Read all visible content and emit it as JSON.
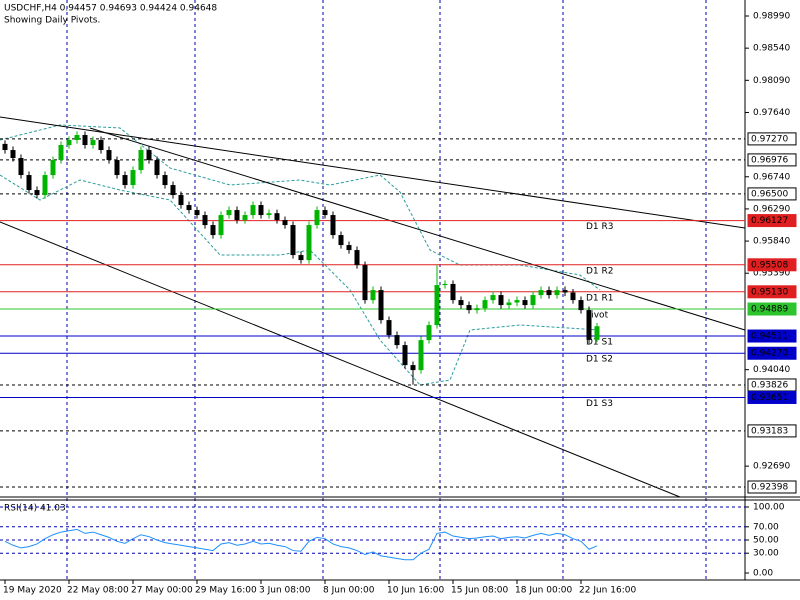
{
  "chart_data": [
    {
      "type": "candlestick",
      "title": "USDCHF,H4  0.94457 0.94693 0.94424 0.94648",
      "subtitle": "Showing Daily Pivots.",
      "bull_color": "#00b400",
      "bear_color": "#000000",
      "grid": true,
      "ylim": [
        0.92258,
        0.99214
      ],
      "yticks": [
        {
          "value": 0.9899,
          "label": "0.98990"
        },
        {
          "value": 0.9854,
          "label": "0.98540"
        },
        {
          "value": 0.9809,
          "label": "0.98090"
        },
        {
          "value": 0.9764,
          "label": "0.97640"
        },
        {
          "value": 0.9674,
          "label": "0.96740"
        },
        {
          "value": 0.9629,
          "label": "0.96290"
        },
        {
          "value": 0.9584,
          "label": "0.95840"
        },
        {
          "value": 0.9539,
          "label": "0.95390"
        },
        {
          "value": 0.9404,
          "label": "0.94040"
        },
        {
          "value": 0.9269,
          "label": "0.92690"
        }
      ],
      "levels": [
        {
          "value": 0.9727,
          "label": "0.97270",
          "color": "#000000",
          "dashed": true
        },
        {
          "value": 0.96976,
          "label": "0.96976",
          "color": "#000000",
          "dashed": true
        },
        {
          "value": 0.965,
          "label": "0.96500",
          "color": "#000000",
          "dashed": true
        },
        {
          "value": 0.96127,
          "label": "0.96127",
          "name": "D1 R3",
          "color": "#e02020",
          "dashed": false
        },
        {
          "value": 0.95508,
          "label": "0.95508",
          "name": "D1 R2",
          "color": "#e02020",
          "dashed": false
        },
        {
          "value": 0.9513,
          "label": "0.95130",
          "name": "D1 R1",
          "color": "#e02020",
          "dashed": false
        },
        {
          "value": 0.94889,
          "label": "0.94889",
          "name": "Pivot",
          "color": "#2ec42e",
          "dashed": false
        },
        {
          "value": 0.94511,
          "label": "0.94511",
          "name": "D1 S1",
          "color": "#0000c8",
          "dashed": false
        },
        {
          "value": 0.9427,
          "label": "0.94270",
          "name": "D1 S2",
          "color": "#0000c8",
          "dashed": false
        },
        {
          "value": 0.93826,
          "label": "0.93826",
          "color": "#000000",
          "dashed": true
        },
        {
          "value": 0.93651,
          "label": "0.93651",
          "name": "D1 S3",
          "color": "#0000c8",
          "dashed": false
        },
        {
          "value": 0.93183,
          "label": "0.93183",
          "color": "#000000",
          "dashed": true
        },
        {
          "value": 0.92398,
          "label": "0.92398",
          "color": "#000000",
          "dashed": true
        }
      ],
      "categories": [
        "19 May 2020",
        null,
        null,
        null,
        null,
        null,
        null,
        null,
        "22 May 08:00",
        null,
        null,
        null,
        null,
        null,
        null,
        null,
        "27 May 00:00",
        null,
        null,
        null,
        null,
        null,
        null,
        null,
        "29 May 16:00",
        null,
        null,
        null,
        null,
        null,
        null,
        null,
        "3 Jun 08:00",
        null,
        null,
        null,
        null,
        null,
        null,
        null,
        "8 Jun 00:00",
        null,
        null,
        null,
        null,
        null,
        null,
        null,
        "10 Jun 16:00",
        null,
        null,
        null,
        null,
        null,
        null,
        null,
        "15 Jun 08:00",
        null,
        null,
        null,
        null,
        null,
        null,
        null,
        "18 Jun 00:00",
        null,
        null,
        null,
        null,
        null,
        null,
        null,
        "22 Jun 16:00",
        null,
        null
      ],
      "candles": [
        [
          0.972,
          0.9725,
          0.97064,
          0.97114
        ],
        [
          0.97114,
          0.97164,
          0.96952,
          0.97002
        ],
        [
          0.97002,
          0.97052,
          0.96714,
          0.96764
        ],
        [
          0.96764,
          0.96814,
          0.96504,
          0.96554
        ],
        [
          0.96554,
          0.96604,
          0.96434,
          0.96484
        ],
        [
          0.96484,
          0.96814,
          0.96434,
          0.96764
        ],
        [
          0.96764,
          0.97024,
          0.96714,
          0.96974
        ],
        [
          0.96974,
          0.97234,
          0.96924,
          0.97184
        ],
        [
          0.97184,
          0.97304,
          0.97134,
          0.97254
        ],
        [
          0.97254,
          0.97374,
          0.97204,
          0.97324
        ],
        [
          0.97324,
          0.97374,
          0.97134,
          0.97184
        ],
        [
          0.97184,
          0.97304,
          0.97134,
          0.97254
        ],
        [
          0.97254,
          0.97304,
          0.97064,
          0.97114
        ],
        [
          0.97114,
          0.97164,
          0.96924,
          0.96974
        ],
        [
          0.96974,
          0.97024,
          0.96714,
          0.96764
        ],
        [
          0.96764,
          0.96814,
          0.96574,
          0.96624
        ],
        [
          0.96624,
          0.96884,
          0.96574,
          0.96834
        ],
        [
          0.96834,
          0.97164,
          0.96784,
          0.97114
        ],
        [
          0.97114,
          0.97164,
          0.96924,
          0.96974
        ],
        [
          0.96974,
          0.97024,
          0.96714,
          0.96764
        ],
        [
          0.96764,
          0.96814,
          0.96574,
          0.96624
        ],
        [
          0.96624,
          0.96674,
          0.96434,
          0.96484
        ],
        [
          0.96484,
          0.96534,
          0.96294,
          0.96344
        ],
        [
          0.96344,
          0.96394,
          0.96224,
          0.96274
        ],
        [
          0.96274,
          0.96324,
          0.96154,
          0.96204
        ],
        [
          0.96204,
          0.96254,
          0.96014,
          0.96064
        ],
        [
          0.96064,
          0.96114,
          0.95874,
          0.95924
        ],
        [
          0.95924,
          0.96254,
          0.95874,
          0.96204
        ],
        [
          0.96204,
          0.96324,
          0.96154,
          0.96274
        ],
        [
          0.96274,
          0.96324,
          0.96084,
          0.96134
        ],
        [
          0.96134,
          0.96254,
          0.96084,
          0.96204
        ],
        [
          0.96204,
          0.96394,
          0.96154,
          0.96344
        ],
        [
          0.96344,
          0.96394,
          0.96154,
          0.96204
        ],
        [
          0.96204,
          0.9628,
          0.96154,
          0.9623
        ],
        [
          0.9623,
          0.9628,
          0.96084,
          0.96134
        ],
        [
          0.96134,
          0.96184,
          0.96014,
          0.96064
        ],
        [
          0.96064,
          0.96114,
          0.95594,
          0.95644
        ],
        [
          0.95644,
          0.95694,
          0.95524,
          0.95574
        ],
        [
          0.95574,
          0.96114,
          0.95524,
          0.96064
        ],
        [
          0.96064,
          0.96324,
          0.96014,
          0.96274
        ],
        [
          0.96274,
          0.96324,
          0.96154,
          0.96204
        ],
        [
          0.96204,
          0.96254,
          0.95874,
          0.95924
        ],
        [
          0.95924,
          0.95974,
          0.95734,
          0.95784
        ],
        [
          0.95784,
          0.95834,
          0.95664,
          0.95714
        ],
        [
          0.95714,
          0.95764,
          0.95454,
          0.95504
        ],
        [
          0.95504,
          0.95554,
          0.94964,
          0.95014
        ],
        [
          0.95014,
          0.95204,
          0.94964,
          0.95154
        ],
        [
          0.95154,
          0.95204,
          0.94684,
          0.94734
        ],
        [
          0.94734,
          0.94784,
          0.94474,
          0.94524
        ],
        [
          0.94524,
          0.94574,
          0.94334,
          0.94384
        ],
        [
          0.94384,
          0.94434,
          0.94054,
          0.94104
        ],
        [
          0.94104,
          0.94154,
          0.9383,
          0.94034
        ],
        [
          0.94034,
          0.94504,
          0.93984,
          0.94454
        ],
        [
          0.94454,
          0.94714,
          0.94404,
          0.94664
        ],
        [
          0.94664,
          0.955,
          0.94614,
          0.95224
        ],
        [
          0.95224,
          0.9529,
          0.95174,
          0.9524
        ],
        [
          0.9524,
          0.9529,
          0.94964,
          0.95014
        ],
        [
          0.95014,
          0.95064,
          0.94894,
          0.94944
        ],
        [
          0.94944,
          0.94994,
          0.94824,
          0.94874
        ],
        [
          0.94874,
          0.9495,
          0.94824,
          0.949
        ],
        [
          0.949,
          0.95064,
          0.9485,
          0.95014
        ],
        [
          0.95014,
          0.95134,
          0.94964,
          0.95084
        ],
        [
          0.95084,
          0.95134,
          0.94894,
          0.94944
        ],
        [
          0.94944,
          0.9503,
          0.94894,
          0.9498
        ],
        [
          0.9498,
          0.95064,
          0.9493,
          0.95014
        ],
        [
          0.95014,
          0.95064,
          0.94894,
          0.94944
        ],
        [
          0.94944,
          0.95134,
          0.94894,
          0.95084
        ],
        [
          0.95084,
          0.95204,
          0.95034,
          0.95154
        ],
        [
          0.95154,
          0.95204,
          0.95034,
          0.95084
        ],
        [
          0.95084,
          0.95204,
          0.95034,
          0.95154
        ],
        [
          0.95154,
          0.95204,
          0.9507,
          0.9512
        ],
        [
          0.9512,
          0.9517,
          0.94964,
          0.95014
        ],
        [
          0.95014,
          0.95064,
          0.94824,
          0.94874
        ],
        [
          0.94874,
          0.94924,
          0.94407,
          0.94457
        ],
        [
          0.94457,
          0.94693,
          0.94424,
          0.94648
        ]
      ]
    },
    {
      "type": "line",
      "title": "RSI(14) 41.03",
      "color": "#1e90ff",
      "ylim": [
        -10.6,
        110.6
      ],
      "yticks": [
        {
          "value": 100,
          "label": "100.00"
        },
        {
          "value": 70,
          "label": "70.00"
        },
        {
          "value": 50,
          "label": "50.00"
        },
        {
          "value": 30,
          "label": "30.00"
        },
        {
          "value": 0,
          "label": "0.00"
        }
      ],
      "values": [
        48,
        42,
        38,
        40,
        44,
        52,
        58,
        62,
        64,
        66,
        60,
        62,
        58,
        54,
        48,
        45,
        52,
        58,
        55,
        50,
        46,
        44,
        42,
        40,
        38,
        36,
        34,
        44,
        46,
        42,
        44,
        48,
        44,
        45,
        42,
        40,
        34,
        33,
        48,
        54,
        52,
        44,
        40,
        38,
        34,
        28,
        32,
        26,
        24,
        22,
        20,
        20,
        30,
        36,
        60,
        62,
        56,
        54,
        52,
        53,
        55,
        56,
        52,
        54,
        55,
        53,
        57,
        60,
        57,
        60,
        58,
        52,
        48,
        36,
        41.03
      ]
    }
  ]
}
